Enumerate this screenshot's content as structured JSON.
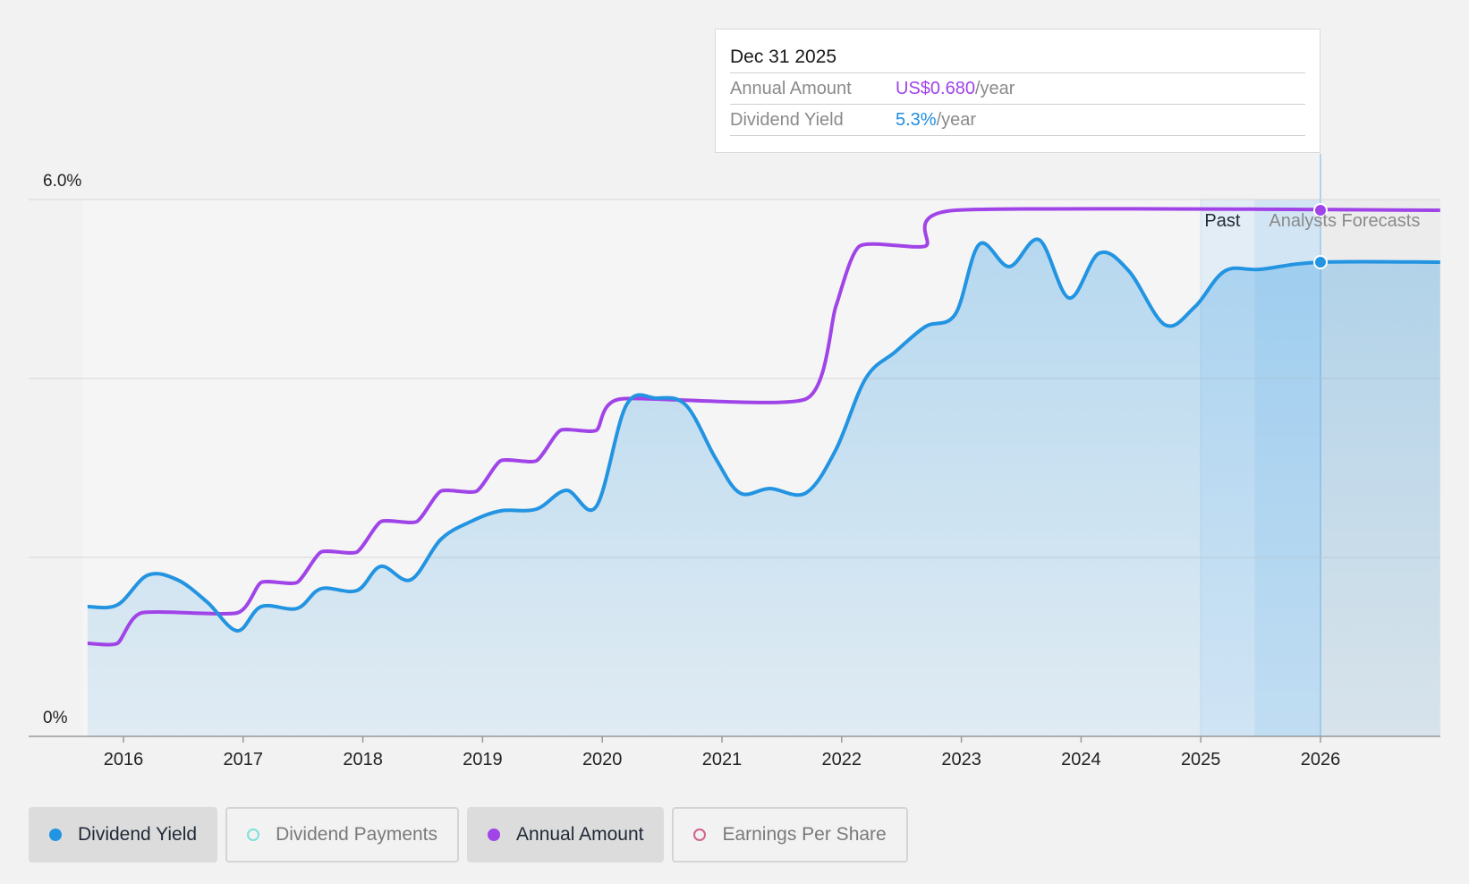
{
  "tooltip": {
    "date": "Dec 31 2025",
    "annual_label": "Annual Amount",
    "annual_value": "US$0.680",
    "annual_unit": "/year",
    "yield_label": "Dividend Yield",
    "yield_value": "5.3%",
    "yield_unit": "/year"
  },
  "legend": [
    {
      "label": "Dividend Yield",
      "color": "#2394e1",
      "active": true,
      "hollow": false
    },
    {
      "label": "Dividend Payments",
      "color": "#7fe0d8",
      "active": false,
      "hollow": true
    },
    {
      "label": "Annual Amount",
      "color": "#a044e8",
      "active": true,
      "hollow": false
    },
    {
      "label": "Earnings Per Share",
      "color": "#d0628e",
      "active": false,
      "hollow": true
    }
  ],
  "colors": {
    "yield": "#2394e1",
    "annual": "#a044e8",
    "grid": "#d6d6d6",
    "axis_text": "#222222"
  },
  "chart_data": {
    "type": "line",
    "y_ticks": [
      {
        "value": 6.0,
        "label": "6.0%"
      },
      {
        "value": 0,
        "label": "0%"
      }
    ],
    "ylim": [
      0,
      6.0
    ],
    "xlim": [
      2015.3,
      2027.0
    ],
    "x_ticks": [
      "2016",
      "2017",
      "2018",
      "2019",
      "2020",
      "2021",
      "2022",
      "2023",
      "2024",
      "2025",
      "2026"
    ],
    "regions": {
      "past_label": "Past",
      "forecast_label": "Analysts Forecasts",
      "past_start": 2025.0,
      "forecast_start": 2025.45,
      "current": 2026.0
    },
    "series": [
      {
        "name": "Dividend Yield",
        "points": [
          [
            2015.7,
            1.45
          ],
          [
            2015.95,
            1.47
          ],
          [
            2016.2,
            1.8
          ],
          [
            2016.45,
            1.75
          ],
          [
            2016.7,
            1.5
          ],
          [
            2016.95,
            1.18
          ],
          [
            2017.15,
            1.45
          ],
          [
            2017.45,
            1.43
          ],
          [
            2017.65,
            1.65
          ],
          [
            2017.95,
            1.63
          ],
          [
            2018.15,
            1.9
          ],
          [
            2018.4,
            1.75
          ],
          [
            2018.65,
            2.2
          ],
          [
            2018.9,
            2.4
          ],
          [
            2019.15,
            2.52
          ],
          [
            2019.45,
            2.54
          ],
          [
            2019.7,
            2.75
          ],
          [
            2019.95,
            2.57
          ],
          [
            2020.2,
            3.7
          ],
          [
            2020.45,
            3.78
          ],
          [
            2020.7,
            3.7
          ],
          [
            2020.95,
            3.1
          ],
          [
            2021.15,
            2.72
          ],
          [
            2021.4,
            2.77
          ],
          [
            2021.7,
            2.72
          ],
          [
            2021.95,
            3.2
          ],
          [
            2022.2,
            4.0
          ],
          [
            2022.45,
            4.3
          ],
          [
            2022.7,
            4.58
          ],
          [
            2022.95,
            4.72
          ],
          [
            2023.15,
            5.5
          ],
          [
            2023.4,
            5.25
          ],
          [
            2023.65,
            5.55
          ],
          [
            2023.9,
            4.9
          ],
          [
            2024.15,
            5.4
          ],
          [
            2024.4,
            5.2
          ],
          [
            2024.7,
            4.6
          ],
          [
            2024.95,
            4.8
          ],
          [
            2025.2,
            5.2
          ],
          [
            2025.5,
            5.22
          ],
          [
            2026.0,
            5.3
          ],
          [
            2027.0,
            5.3
          ]
        ]
      },
      {
        "name": "Annual Amount",
        "points": [
          [
            2015.7,
            1.04
          ],
          [
            2015.95,
            1.04
          ],
          [
            2016.15,
            1.38
          ],
          [
            2016.95,
            1.38
          ],
          [
            2017.15,
            1.72
          ],
          [
            2017.45,
            1.72
          ],
          [
            2017.65,
            2.06
          ],
          [
            2017.95,
            2.06
          ],
          [
            2018.15,
            2.4
          ],
          [
            2018.45,
            2.4
          ],
          [
            2018.65,
            2.74
          ],
          [
            2018.95,
            2.74
          ],
          [
            2019.15,
            3.08
          ],
          [
            2019.45,
            3.08
          ],
          [
            2019.65,
            3.42
          ],
          [
            2019.95,
            3.42
          ],
          [
            2020.15,
            3.77
          ],
          [
            2021.7,
            3.77
          ],
          [
            2021.95,
            4.8
          ],
          [
            2022.15,
            5.48
          ],
          [
            2022.7,
            5.48
          ],
          [
            2022.95,
            5.88
          ],
          [
            2027.0,
            5.88
          ]
        ]
      }
    ]
  }
}
